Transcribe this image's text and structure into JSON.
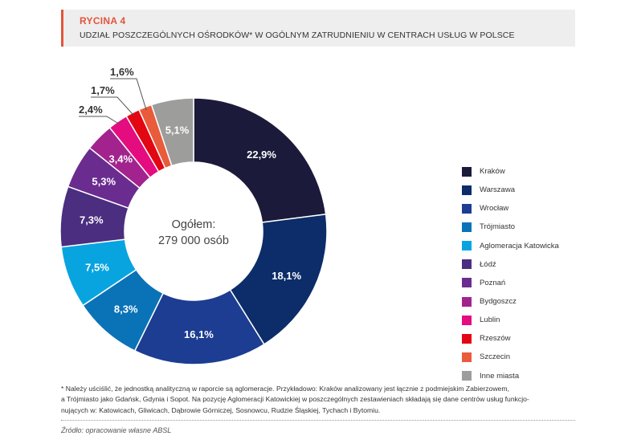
{
  "header": {
    "label": "RYCINA 4",
    "title": "UDZIAŁ POSZCZEGÓLNYCH OŚRODKÓW* W OGÓLNYM ZATRUDNIENIU W CENTRACH USŁUG W POLSCE",
    "accent_color": "#e2553b"
  },
  "chart_data": {
    "type": "pie",
    "donut": true,
    "center_label": [
      "Ogółem:",
      "279 000 osób"
    ],
    "legend_position": "right",
    "categories": [
      "Kraków",
      "Warszawa",
      "Wrocław",
      "Trójmiasto",
      "Aglomeracja Katowicka",
      "Łódź",
      "Poznań",
      "Bydgoszcz",
      "Lublin",
      "Rzeszów",
      "Szczecin",
      "Inne miasta"
    ],
    "values": [
      22.9,
      18.1,
      16.1,
      8.3,
      7.5,
      7.3,
      5.3,
      3.4,
      2.4,
      1.7,
      1.6,
      5.1
    ],
    "value_labels": [
      "22,9%",
      "18,1%",
      "16,1%",
      "8,3%",
      "7,5%",
      "7,3%",
      "5,3%",
      "3,4%",
      "2,4%",
      "1,7%",
      "1,6%",
      "5,1%"
    ],
    "colors": [
      "#1b1a3a",
      "#0c2d69",
      "#1c3d91",
      "#0a73b7",
      "#08a4e0",
      "#4b2e7f",
      "#6a2c8f",
      "#a2238e",
      "#e40c7f",
      "#e30613",
      "#e85b3b",
      "#9d9d9c"
    ]
  },
  "footnote": {
    "lines": [
      "* Należy uściślić, że jednostką analityczną w raporcie są aglomeracje. Przykładowo: Kraków analizowany jest łącznie z podmiejskim Zabierzowem,",
      "a Trójmiasto jako Gdańsk, Gdynia i Sopot. Na pozycję Aglomeracji Katowickiej w poszczególnych zestawieniach składają się dane centrów usług funkcjo-",
      "nujących w: Katowicach, Gliwicach, Dąbrowie Górniczej, Sosnowcu, Rudzie Śląskiej, Tychach i Bytomiu."
    ]
  },
  "source": "Źródło: opracowanie własne ABSL"
}
